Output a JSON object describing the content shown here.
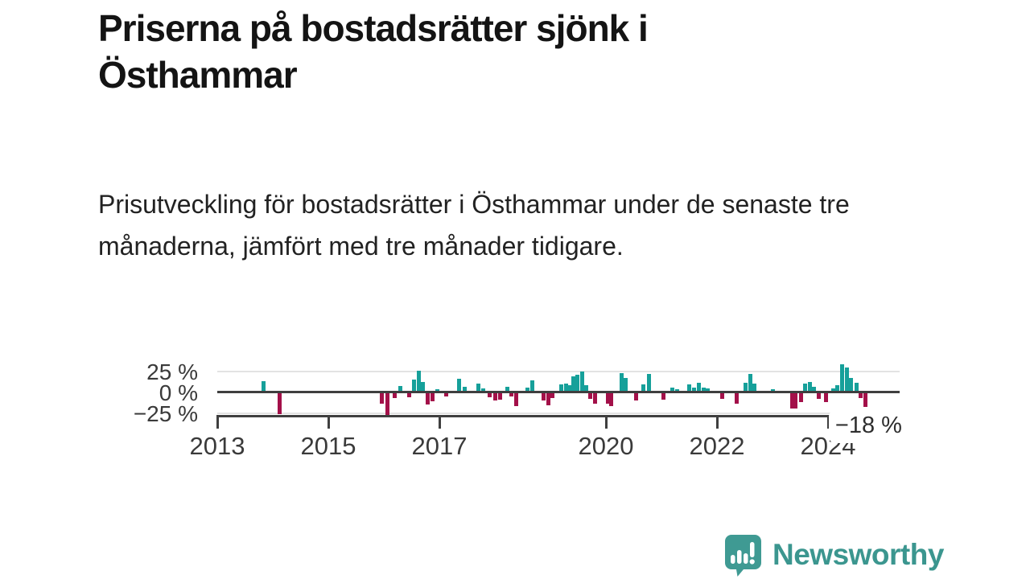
{
  "page": {
    "title": "Priserna på bostadsrätter sjönk i Östhammar",
    "subtitle": "Prisutveckling för bostadsrätter i Östhammar under de senaste tre månaderna, jämfört med tre månader tidigare."
  },
  "branding": {
    "logo_text": "Newsworthy",
    "logo_icon": "bar-chart-speech-bubble-icon",
    "brand_color": "#3b968f"
  },
  "chart_data": {
    "type": "bar",
    "title": "",
    "xlabel": "",
    "ylabel": "",
    "unit": "%",
    "grid": true,
    "x_range": [
      2013,
      2025.3
    ],
    "y_range": [
      -30,
      35
    ],
    "x_ticks": [
      2013,
      2015,
      2017,
      2020,
      2022,
      2024
    ],
    "y_ticks": [
      {
        "value": 25,
        "label": "25 %"
      },
      {
        "value": 0,
        "label": "0 %"
      },
      {
        "value": -25,
        "label": "−25 %"
      }
    ],
    "annotation": {
      "label": "−18 %",
      "x": 2024.68,
      "value": -18
    },
    "colors": {
      "positive": "#16a09a",
      "negative": "#a31049",
      "axis": "#3f3f3f",
      "gridline": "#e3e3e3"
    },
    "points": [
      [
        2013.83,
        13
      ],
      [
        2014.13,
        -26
      ],
      [
        2015.97,
        -14
      ],
      [
        2016.06,
        -27
      ],
      [
        2016.2,
        -7
      ],
      [
        2016.29,
        7
      ],
      [
        2016.46,
        -6
      ],
      [
        2016.55,
        15
      ],
      [
        2016.63,
        26
      ],
      [
        2016.71,
        12
      ],
      [
        2016.79,
        -15
      ],
      [
        2016.88,
        -11
      ],
      [
        2016.96,
        3
      ],
      [
        2017.13,
        -5
      ],
      [
        2017.36,
        16
      ],
      [
        2017.45,
        6
      ],
      [
        2017.7,
        10
      ],
      [
        2017.79,
        4
      ],
      [
        2017.91,
        -6
      ],
      [
        2018.0,
        -10
      ],
      [
        2018.09,
        -9
      ],
      [
        2018.22,
        6
      ],
      [
        2018.3,
        -5
      ],
      [
        2018.39,
        -17
      ],
      [
        2018.58,
        5
      ],
      [
        2018.68,
        14
      ],
      [
        2018.88,
        -10
      ],
      [
        2018.97,
        -16
      ],
      [
        2019.04,
        -7
      ],
      [
        2019.19,
        9
      ],
      [
        2019.28,
        10
      ],
      [
        2019.35,
        8
      ],
      [
        2019.42,
        19
      ],
      [
        2019.49,
        21
      ],
      [
        2019.57,
        25
      ],
      [
        2019.65,
        8
      ],
      [
        2019.72,
        -8
      ],
      [
        2019.81,
        -14
      ],
      [
        2020.03,
        -14
      ],
      [
        2020.1,
        -17
      ],
      [
        2020.28,
        23
      ],
      [
        2020.35,
        17
      ],
      [
        2020.54,
        -10
      ],
      [
        2020.68,
        9
      ],
      [
        2020.77,
        22
      ],
      [
        2021.03,
        -9
      ],
      [
        2021.2,
        5
      ],
      [
        2021.28,
        3
      ],
      [
        2021.5,
        9
      ],
      [
        2021.58,
        5
      ],
      [
        2021.67,
        11
      ],
      [
        2021.76,
        5
      ],
      [
        2021.84,
        4
      ],
      [
        2022.1,
        -8
      ],
      [
        2022.35,
        -14
      ],
      [
        2022.51,
        11
      ],
      [
        2022.6,
        22
      ],
      [
        2022.68,
        10
      ],
      [
        2023.0,
        3
      ],
      [
        2023.35,
        -20
      ],
      [
        2023.42,
        -20
      ],
      [
        2023.51,
        -12
      ],
      [
        2023.58,
        10
      ],
      [
        2023.67,
        12
      ],
      [
        2023.75,
        6
      ],
      [
        2023.84,
        -8
      ],
      [
        2023.97,
        -12
      ],
      [
        2024.09,
        4
      ],
      [
        2024.17,
        8
      ],
      [
        2024.26,
        33
      ],
      [
        2024.34,
        29
      ],
      [
        2024.42,
        17
      ],
      [
        2024.51,
        11
      ],
      [
        2024.59,
        -7
      ],
      [
        2024.68,
        -18
      ]
    ]
  }
}
